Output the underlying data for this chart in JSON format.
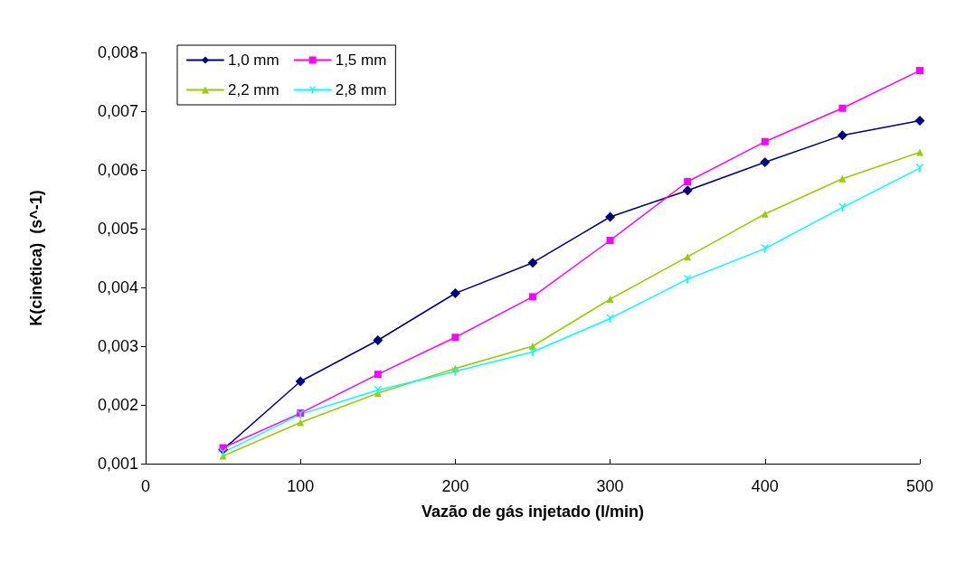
{
  "chart_data": {
    "type": "line",
    "xlabel": "Vazão de gás injetado (l/min)",
    "ylabel": "K(cinética)  (s^-1)",
    "x": [
      50,
      100,
      150,
      200,
      250,
      300,
      350,
      400,
      450,
      500
    ],
    "series": [
      {
        "name": "1,0 mm",
        "color": "#000080",
        "marker": "diamond",
        "values": [
          0.00124,
          0.0024,
          0.0031,
          0.0039,
          0.00442,
          0.0052,
          0.00565,
          0.00613,
          0.00659,
          0.00684
        ]
      },
      {
        "name": "1,5 mm",
        "color": "#ff00ff",
        "marker": "square",
        "values": [
          0.00127,
          0.00186,
          0.00252,
          0.00315,
          0.00384,
          0.0048,
          0.0058,
          0.00648,
          0.00705,
          0.00769
        ]
      },
      {
        "name": "2,2 mm",
        "color": "#99cc00",
        "marker": "triangle",
        "values": [
          0.00113,
          0.0017,
          0.0022,
          0.00262,
          0.003,
          0.0038,
          0.00452,
          0.00525,
          0.00585,
          0.0063
        ]
      },
      {
        "name": "2,8 mm",
        "color": "#00ffff",
        "marker": "cross",
        "values": [
          0.00119,
          0.00184,
          0.00225,
          0.00257,
          0.0029,
          0.00347,
          0.00414,
          0.00466,
          0.00536,
          0.00603
        ]
      }
    ],
    "xlim": [
      0,
      500
    ],
    "xticks": [
      0,
      100,
      200,
      300,
      400,
      500
    ],
    "ylim": [
      0.001,
      0.008
    ],
    "yticks": [
      {
        "value": 0.001,
        "label": "0,001"
      },
      {
        "value": 0.002,
        "label": "0,002"
      },
      {
        "value": 0.003,
        "label": "0,003"
      },
      {
        "value": 0.004,
        "label": "0,004"
      },
      {
        "value": 0.005,
        "label": "0,005"
      },
      {
        "value": 0.006,
        "label": "0,006"
      },
      {
        "value": 0.007,
        "label": "0,007"
      },
      {
        "value": 0.008,
        "label": "0,008"
      }
    ],
    "grid": false,
    "legend": "top left",
    "line_style": "solid"
  }
}
